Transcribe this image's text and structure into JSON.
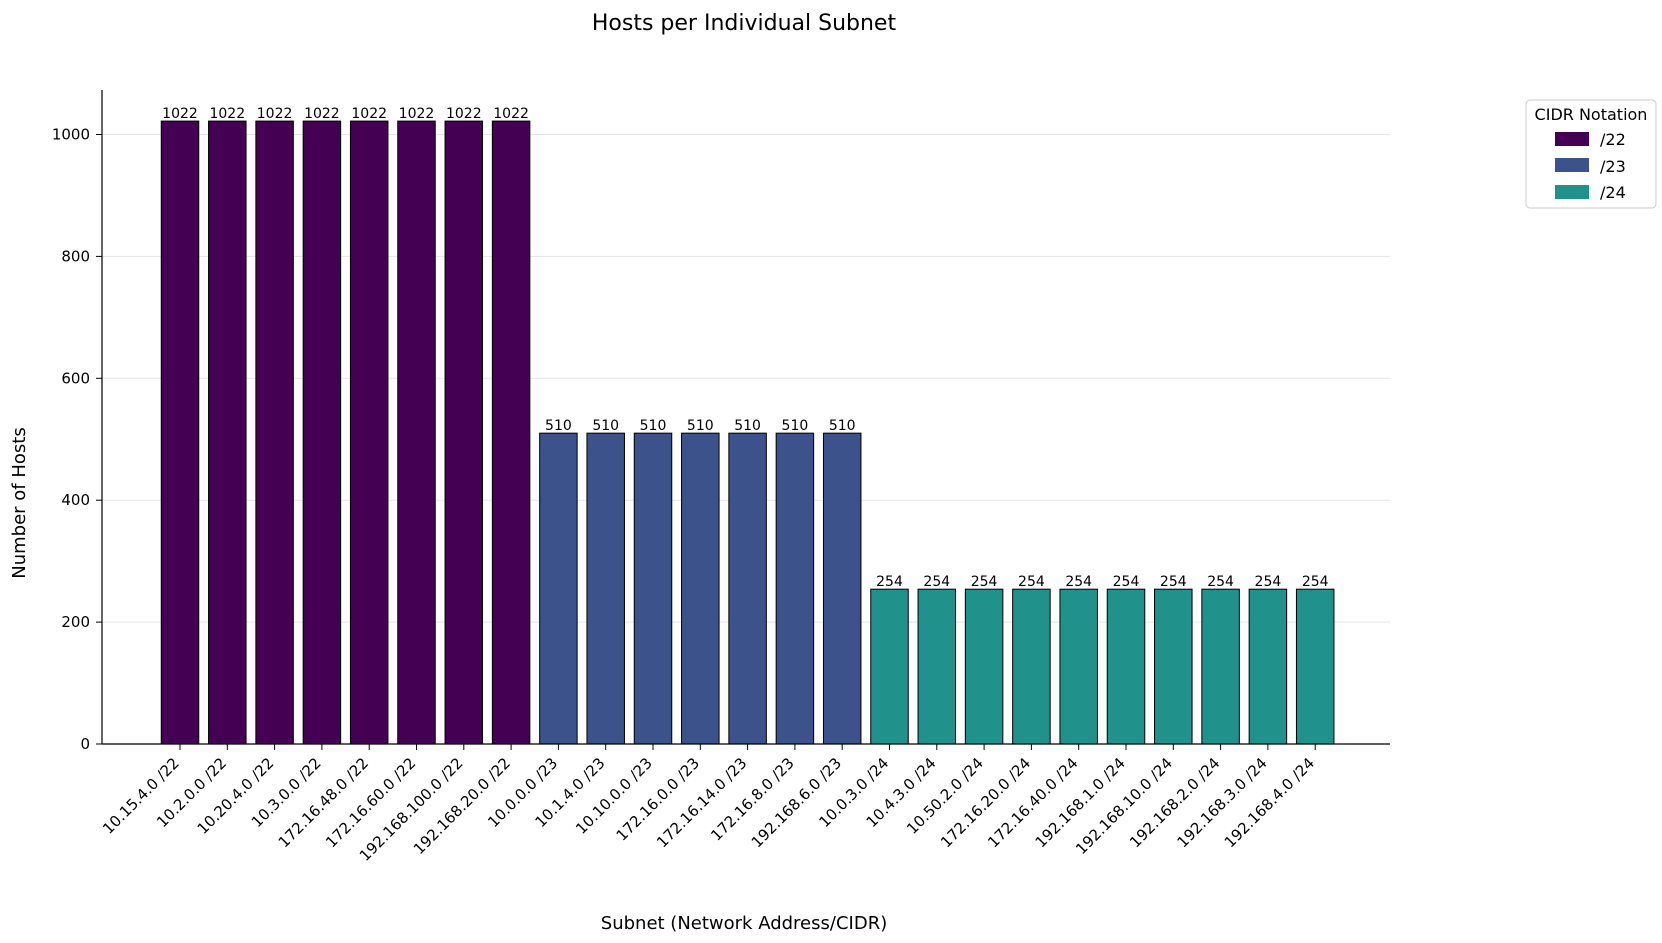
{
  "chart_data": {
    "type": "bar",
    "title": "Hosts per Individual Subnet",
    "xlabel": "Subnet (Network Address/CIDR)",
    "ylabel": "Number of Hosts",
    "ylim": [
      0,
      1073
    ],
    "yticks": [
      0,
      200,
      400,
      600,
      800,
      1000
    ],
    "grid": true,
    "legend": {
      "title": "CIDR Notation",
      "placement": "upper-right-outside",
      "entries": [
        {
          "label": "/22",
          "color": "#440154"
        },
        {
          "label": "/23",
          "color": "#3b528b"
        },
        {
          "label": "/24",
          "color": "#21918c"
        }
      ]
    },
    "categories": [
      "10.15.4.0 /22",
      "10.2.0.0 /22",
      "10.20.4.0 /22",
      "10.3.0.0 /22",
      "172.16.48.0 /22",
      "172.16.60.0 /22",
      "192.168.100.0 /22",
      "192.168.20.0 /22",
      "10.0.0.0 /23",
      "10.1.4.0 /23",
      "10.10.0.0 /23",
      "172.16.0.0 /23",
      "172.16.14.0 /23",
      "172.16.8.0 /23",
      "192.168.6.0 /23",
      "10.0.3.0 /24",
      "10.4.3.0 /24",
      "10.50.2.0 /24",
      "172.16.20.0 /24",
      "172.16.40.0 /24",
      "192.168.1.0 /24",
      "192.168.10.0 /24",
      "192.168.2.0 /24",
      "192.168.3.0 /24",
      "192.168.4.0 /24"
    ],
    "values": [
      1022,
      1022,
      1022,
      1022,
      1022,
      1022,
      1022,
      1022,
      510,
      510,
      510,
      510,
      510,
      510,
      510,
      254,
      254,
      254,
      254,
      254,
      254,
      254,
      254,
      254,
      254
    ],
    "groups": [
      "/22",
      "/22",
      "/22",
      "/22",
      "/22",
      "/22",
      "/22",
      "/22",
      "/23",
      "/23",
      "/23",
      "/23",
      "/23",
      "/23",
      "/23",
      "/24",
      "/24",
      "/24",
      "/24",
      "/24",
      "/24",
      "/24",
      "/24",
      "/24",
      "/24"
    ]
  }
}
